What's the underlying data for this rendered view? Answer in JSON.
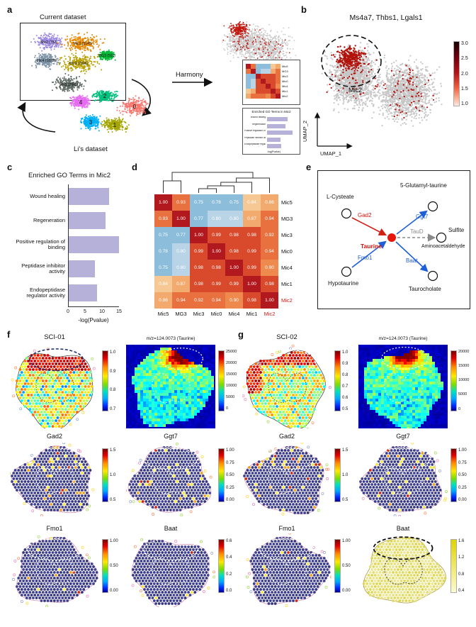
{
  "panels": {
    "a": {
      "label": "a",
      "current_dataset_title": "Current dataset",
      "lis_dataset_label": "Li's dataset",
      "harmony_label": "Harmony",
      "current_clusters": [
        {
          "name": "Mic2 (782)",
          "color": "#9c8ae0"
        },
        {
          "name": "Mic1 (3149)",
          "color": "#e58700"
        },
        {
          "name": "MG3 (500)",
          "color": "#00ba38"
        },
        {
          "name": "Mic0 (7596)",
          "color": "#b79f00"
        },
        {
          "name": "Mic4 (1823)",
          "color": "#7d93a6"
        },
        {
          "name": "Mic3 (2845)",
          "color": "#5e6a63"
        }
      ],
      "li_clusters": [
        {
          "id": "0",
          "color": "#f8766d"
        },
        {
          "id": "1",
          "color": "#a3a500"
        },
        {
          "id": "2",
          "color": "#00bf7d"
        },
        {
          "id": "3",
          "color": "#00b0f6"
        },
        {
          "id": "4",
          "color": "#e76bf3"
        }
      ],
      "inset_go_title": "Enriched GO Terms in Mic2"
    },
    "b": {
      "label": "b",
      "title": "Ms4a7, Thbs1, Lgals1",
      "cluster_label": "Mic2",
      "xaxis": "UMAP_1",
      "yaxis": "UMAP_2",
      "cbar_ticks": [
        "3.0",
        "2.5",
        "2.0",
        "1.5",
        "1.0"
      ]
    },
    "c": {
      "label": "c",
      "title": "Enriched GO Terms in Mic2"
    },
    "d": {
      "label": "d",
      "highlight_label": "Mic2"
    },
    "e": {
      "label": "e",
      "nodes": {
        "l_cysteate": "L-Cysteate",
        "glutamyl_taurine": "5-Glutamyl-taurine",
        "taurine": "Taurine",
        "sulfite": "Sulfite",
        "aminoacetaldehyde": "Aminoacetaldehyde",
        "hypotaurine": "Hypotaurine",
        "taurocholate": "Taurocholate"
      },
      "enzymes": {
        "gad2": "Gad2",
        "ggt7": "Ggt7",
        "taud": "TauD",
        "fmo1": "Fmo1",
        "baat": "Baat"
      }
    },
    "f": {
      "label": "f",
      "title": "SCI-01",
      "maps": [
        {
          "id": "map-f-spots",
          "title": "",
          "cbar_ticks": [
            "1.0",
            "0.9",
            "0.8",
            "0.7"
          ]
        },
        {
          "id": "map-f-msi",
          "title": "m/z=124.0073 (Taurine)",
          "cbar_ticks": [
            "25000",
            "20000",
            "15000",
            "10000",
            "5000",
            "0"
          ]
        },
        {
          "id": "map-f-gad2",
          "title": "Gad2",
          "cbar_ticks": [
            "1.5",
            "1.0",
            "0.5"
          ]
        },
        {
          "id": "map-f-ggt7",
          "title": "Ggt7",
          "cbar_ticks": [
            "1.00",
            "0.75",
            "0.50",
            "0.25",
            "0.00"
          ]
        },
        {
          "id": "map-f-fmo1",
          "title": "Fmo1",
          "cbar_ticks": [
            "1.00",
            "0.50",
            "0.00"
          ]
        },
        {
          "id": "map-f-baat",
          "title": "Baat",
          "cbar_ticks": [
            "0.6",
            "0.4",
            "0.2",
            "0.0"
          ]
        }
      ]
    },
    "g": {
      "label": "g",
      "title": "SCI-02",
      "maps": [
        {
          "id": "map-g-spots",
          "title": "",
          "cbar_ticks": [
            "1.0",
            "0.9",
            "0.8",
            "0.7",
            "0.6",
            "0.5"
          ]
        },
        {
          "id": "map-g-msi",
          "title": "m/z=124.0073 (Taurine)",
          "cbar_ticks": [
            "20000",
            "15000",
            "10000",
            "5000",
            "0"
          ]
        },
        {
          "id": "map-g-gad2",
          "title": "Gad2",
          "cbar_ticks": [
            "1.5",
            "1.0",
            "0.5"
          ]
        },
        {
          "id": "map-g-ggt7",
          "title": "Ggt7",
          "cbar_ticks": [
            "1.00",
            "0.75",
            "0.50",
            "0.25",
            "0.00"
          ]
        },
        {
          "id": "map-g-fmo1",
          "title": "Fmo1",
          "cbar_ticks": [
            "1.00",
            "0.50",
            "0.00"
          ]
        },
        {
          "id": "map-g-baat",
          "title": "Baat",
          "cbar_ticks": [
            "1.6",
            "1.2",
            "0.8",
            "0.4"
          ]
        }
      ]
    }
  },
  "chart_data": [
    {
      "type": "bar",
      "title": "Enriched GO Terms in Mic2",
      "orientation": "horizontal",
      "categories": [
        "Wound healing",
        "Regeneration",
        "Positive regulation of binding",
        "Peptidase inhibitor activity",
        "Endopeptidase regulator activity"
      ],
      "values": [
        12,
        11,
        15,
        8,
        8.5
      ],
      "xlabel": "-log(Pvalue)",
      "xticks": [
        0,
        5,
        10,
        15
      ],
      "xlim": [
        0,
        15
      ],
      "bar_color": "#b5b1d8"
    },
    {
      "type": "heatmap",
      "title": "",
      "rows": [
        "Mic5",
        "MG3",
        "Mic3",
        "Mic0",
        "Mic4",
        "Mic1",
        "Mic2"
      ],
      "cols": [
        "Mic5",
        "MG3",
        "Mic3",
        "Mic0",
        "Mic4",
        "Mic1",
        "Mic2"
      ],
      "values": [
        [
          1.0,
          0.93,
          0.75,
          0.78,
          0.75,
          0.84,
          0.86
        ],
        [
          0.93,
          1.0,
          0.77,
          0.8,
          0.8,
          0.87,
          0.94
        ],
        [
          0.75,
          0.77,
          1.0,
          0.99,
          0.98,
          0.98,
          0.92
        ],
        [
          0.78,
          0.8,
          0.99,
          1.0,
          0.98,
          0.99,
          0.94
        ],
        [
          0.75,
          0.8,
          0.98,
          0.98,
          1.0,
          0.99,
          0.9
        ],
        [
          0.84,
          0.87,
          0.98,
          0.99,
          0.99,
          1.0,
          0.98
        ],
        [
          0.86,
          0.94,
          0.92,
          0.94,
          0.9,
          0.98,
          1.0
        ]
      ]
    }
  ]
}
